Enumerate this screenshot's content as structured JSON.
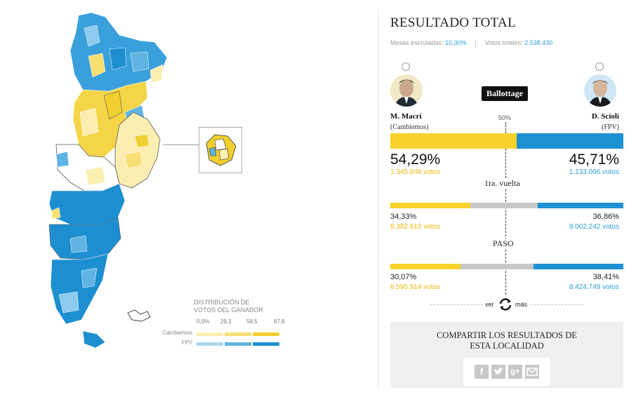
{
  "legend": {
    "title_line1": "DISTRIBUCIÓN DE",
    "title_line2": "VOTOS DEL GANADOR",
    "ticks": [
      "0,0%",
      "29,3",
      "58,5",
      "87,8"
    ],
    "rows": [
      {
        "label": "Cambiemos",
        "colors": [
          "#fbeeb0",
          "#f7df73",
          "#f1cf2e"
        ]
      },
      {
        "label": "FPV",
        "colors": [
          "#a9d6ef",
          "#5fb4e3",
          "#1d8fd0"
        ]
      }
    ]
  },
  "result": {
    "title": "RESULTADO TOTAL",
    "mesas_label": "Mesas escrutadas:",
    "mesas_value": "10,30%",
    "votos_label": "Votos totales:",
    "votos_value": "2.538.430"
  },
  "candidates": {
    "left": {
      "name": "M. Macri",
      "party": "(Cambiemos)",
      "avatar": "macri-avatar"
    },
    "right": {
      "name": "D. Scioli",
      "party": "(FPV)",
      "avatar": "scioli-avatar"
    }
  },
  "ballottage": {
    "badge": "Ballottage",
    "fifty_label": "50%",
    "left_pct": "54,29%",
    "left_votes": "1.345.848 votos",
    "right_pct": "45,71%",
    "right_votes": "1.133.006 votos",
    "left_fraction": 0.5429
  },
  "primera_vuelta": {
    "label": "1ra. vuelta",
    "left_pct": "34,33%",
    "left_votes": "8.382.610 votos",
    "right_pct": "36,86%",
    "right_votes": "9.002.242 votos",
    "left_fraction": 0.3433,
    "right_fraction": 0.3686
  },
  "paso": {
    "label": "PASO",
    "left_pct": "30,07%",
    "left_votes": "6.595.914 votos",
    "right_pct": "38,41%",
    "right_votes": "8.424.749 votos",
    "left_fraction": 0.3007,
    "right_fraction": 0.3841
  },
  "nav": {
    "ver": "ver",
    "mas": "más"
  },
  "share": {
    "title": "COMPARTIR LOS RESULTADOS DE\nESTA LOCALIDAD",
    "icons": [
      "facebook-icon",
      "twitter-icon",
      "google-plus-icon",
      "email-icon"
    ]
  },
  "colors": {
    "cambiemos": "#f7d32b",
    "fpv": "#1e91d3",
    "other": "#c8c8c8"
  }
}
